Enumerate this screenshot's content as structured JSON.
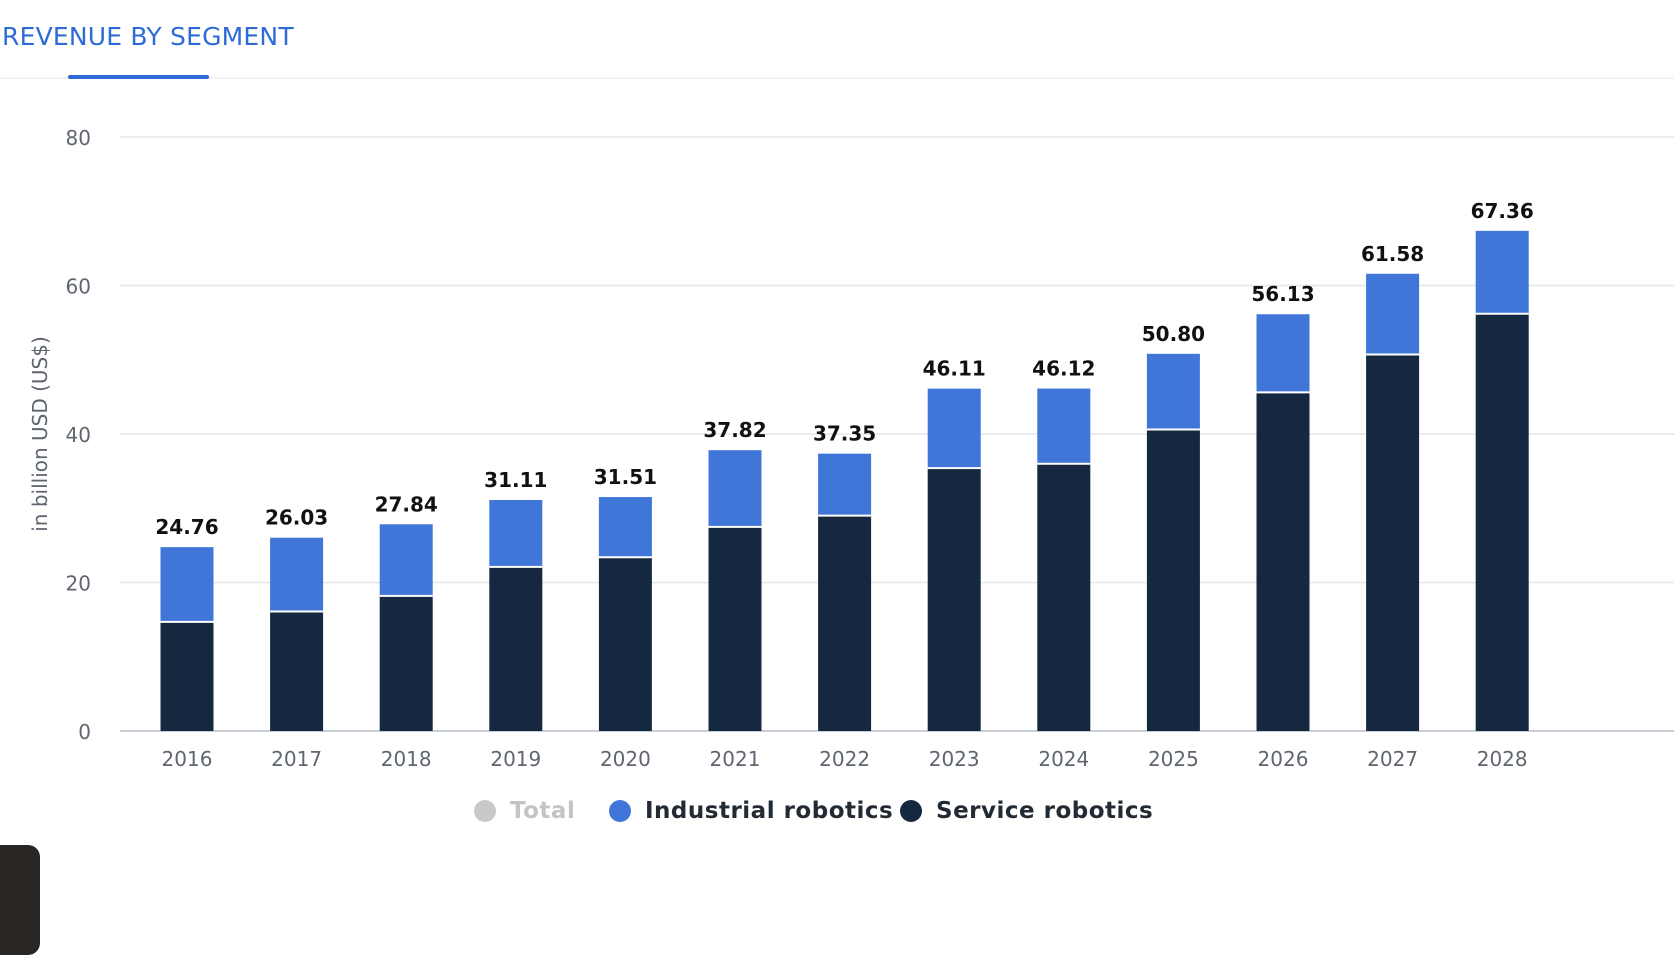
{
  "header": {
    "title": "REVENUE BY SEGMENT"
  },
  "colors": {
    "industrial": "#3f76d8",
    "service": "#16283f",
    "total": "#c9c9c9",
    "grid": "#e3e6ea",
    "axis_text": "#5f6670"
  },
  "chart_data": {
    "type": "bar",
    "stacked": true,
    "categories": [
      "2016",
      "2017",
      "2018",
      "2019",
      "2020",
      "2021",
      "2022",
      "2023",
      "2024",
      "2025",
      "2026",
      "2027",
      "2028"
    ],
    "series": [
      {
        "name": "Service robotics",
        "values": [
          14.7,
          16.1,
          18.2,
          22.1,
          23.4,
          27.5,
          29.0,
          35.4,
          36.0,
          40.6,
          45.6,
          50.7,
          56.2
        ]
      },
      {
        "name": "Industrial robotics",
        "values": [
          10.06,
          9.93,
          9.64,
          9.01,
          8.11,
          10.32,
          8.35,
          10.71,
          10.12,
          10.2,
          10.53,
          10.88,
          11.16
        ]
      }
    ],
    "totals": [
      "24.76",
      "26.03",
      "27.84",
      "31.11",
      "31.51",
      "37.82",
      "37.35",
      "46.11",
      "46.12",
      "50.80",
      "56.13",
      "61.58",
      "67.36"
    ],
    "ylabel": "in billion USD (US$)",
    "ylim": [
      0,
      80
    ],
    "yticks": [
      0,
      20,
      40,
      60,
      80
    ],
    "grid": true,
    "legend": [
      {
        "label": "Total",
        "color": "#c9c9c9",
        "active": false
      },
      {
        "label": "Industrial robotics",
        "color": "#3f76d8",
        "active": true
      },
      {
        "label": "Service robotics",
        "color": "#16283f",
        "active": true
      }
    ],
    "legend_position": "bottom-center"
  }
}
